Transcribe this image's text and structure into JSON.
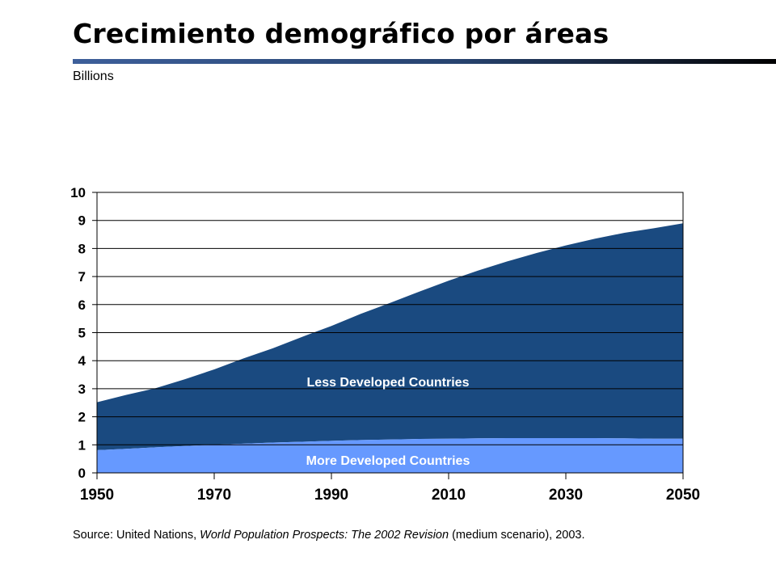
{
  "slide": {
    "title": "Crecimiento demográfico por áreas",
    "subtitle": "Billions"
  },
  "source": {
    "prefix": "Source: United Nations, ",
    "publication": "World Population Prospects: The 2002 Revision",
    "suffix": " (medium scenario), 2003."
  },
  "colors": {
    "less_developed": "#1a4a80",
    "more_developed": "#6699ff",
    "title_rule": "#27436f"
  },
  "chart_data": {
    "type": "area",
    "stacked": true,
    "x": [
      1950,
      1955,
      1960,
      1965,
      1970,
      1975,
      1980,
      1985,
      1990,
      1995,
      2000,
      2005,
      2010,
      2015,
      2020,
      2025,
      2030,
      2035,
      2040,
      2045,
      2050
    ],
    "series": [
      {
        "name": "More Developed Countries",
        "values": [
          0.81,
          0.86,
          0.91,
          0.96,
          1.0,
          1.04,
          1.08,
          1.11,
          1.14,
          1.17,
          1.19,
          1.21,
          1.22,
          1.23,
          1.24,
          1.24,
          1.24,
          1.24,
          1.23,
          1.22,
          1.22
        ]
      },
      {
        "name": "Less Developed Countries",
        "values": [
          1.71,
          1.92,
          2.11,
          2.38,
          2.69,
          3.04,
          3.36,
          3.74,
          4.1,
          4.5,
          4.87,
          5.25,
          5.63,
          5.98,
          6.3,
          6.6,
          6.87,
          7.11,
          7.33,
          7.5,
          7.68
        ]
      }
    ],
    "x_ticks": [
      "1950",
      "1970",
      "1990",
      "2010",
      "2030",
      "2050"
    ],
    "y_ticks": [
      "0",
      "1",
      "2",
      "3",
      "4",
      "5",
      "6",
      "7",
      "8",
      "9",
      "10"
    ],
    "xlim": [
      1950,
      2050
    ],
    "ylim": [
      0,
      10
    ],
    "grid": true
  }
}
